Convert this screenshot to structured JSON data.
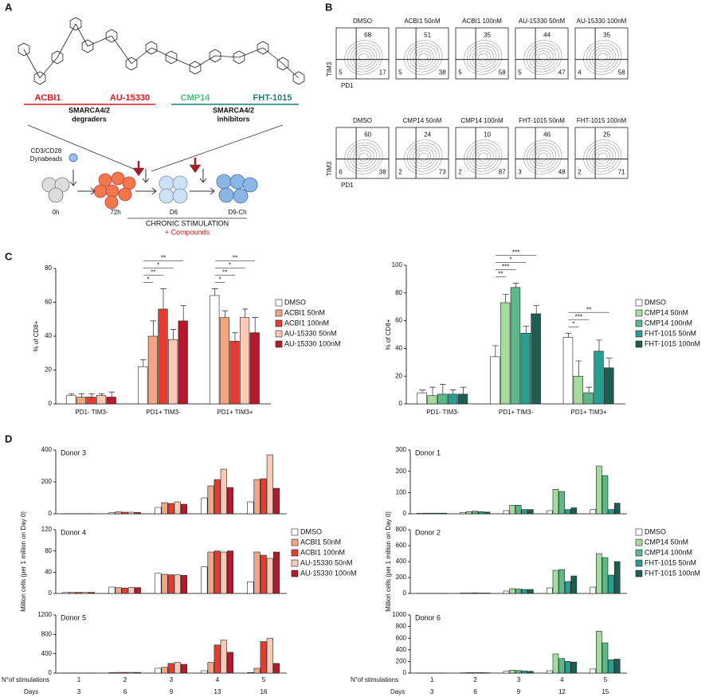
{
  "panel_labels": [
    "A",
    "B",
    "C",
    "D"
  ],
  "panel_a": {
    "compounds": [
      {
        "name": "ACBI1",
        "color": "#d7191c"
      },
      {
        "name": "AU-15330",
        "color": "#d7191c"
      },
      {
        "name": "CMP14",
        "color": "#4cbf7f"
      },
      {
        "name": "FHT-1015",
        "color": "#1b7f73"
      }
    ],
    "groups": [
      [
        "SMARCA4/2",
        "degraders"
      ],
      [
        "SMARCA4/2",
        "inhibitors"
      ]
    ],
    "stimulus": [
      "CD3/CD28",
      "Dynabeads"
    ],
    "timepoints": [
      "0h",
      "72h",
      "D6",
      "D9-Ch"
    ],
    "stimulation": "CHRONIC STIMULATION",
    "compounds_note": "+ Compounds"
  },
  "panel_b": {
    "x_label": "PD1",
    "y_label": "TIM3",
    "plots": [
      {
        "title": "DMSO",
        "quadrants": [
          68,
          5,
          17
        ]
      },
      {
        "title": "ACBI1 50nM",
        "quadrants": [
          51,
          5,
          38
        ]
      },
      {
        "title": "ACBI1 100nM",
        "quadrants": [
          35,
          5,
          58
        ]
      },
      {
        "title": "AU-15330 50nM",
        "quadrants": [
          44,
          5,
          47
        ]
      },
      {
        "title": "AU-15330 100nM",
        "quadrants": [
          35,
          4,
          58
        ]
      },
      {
        "title": "DMSO",
        "quadrants": [
          60,
          6,
          38
        ]
      },
      {
        "title": "CMP14 50nM",
        "quadrants": [
          24,
          2,
          73
        ]
      },
      {
        "title": "CMP14 100nM",
        "quadrants": [
          10,
          2,
          87
        ]
      },
      {
        "title": "FHT-1015 50nM",
        "quadrants": [
          46,
          3,
          48
        ]
      },
      {
        "title": "FHT-1015 100nM",
        "quadrants": [
          25,
          2,
          71
        ]
      }
    ]
  },
  "chart_data": [
    {
      "type": "bar",
      "ylabel": "% of CD8+",
      "categories": [
        "PD1- TIM3-",
        "PD1+ TIM3-",
        "PD1+ TIM3+"
      ],
      "ylim": [
        0,
        80
      ],
      "yticks": [
        0,
        20,
        40,
        60,
        80
      ],
      "series": [
        {
          "name": "DMSO",
          "color": "#ffffff",
          "values": [
            5,
            22,
            64
          ],
          "errors": [
            1,
            4,
            4
          ]
        },
        {
          "name": "ACBI1 50nM",
          "color": "#f4a582",
          "values": [
            4,
            40,
            51
          ],
          "errors": [
            2,
            9,
            4
          ]
        },
        {
          "name": "ACBI1 100nM",
          "color": "#e8392e",
          "values": [
            4,
            56,
            37
          ],
          "errors": [
            2,
            12,
            5
          ]
        },
        {
          "name": "AU-15330 50nM",
          "color": "#fbc9b4",
          "values": [
            5,
            38,
            51
          ],
          "errors": [
            1,
            6,
            5
          ]
        },
        {
          "name": "AU-15330 100nM",
          "color": "#b5192b",
          "values": [
            4,
            49,
            42
          ],
          "errors": [
            3,
            9,
            9
          ]
        }
      ],
      "significance": [
        [],
        [
          "*",
          "**",
          "*",
          "**"
        ],
        [
          "*",
          "**",
          "*",
          "**"
        ]
      ]
    },
    {
      "type": "bar",
      "ylabel": "% of CD8+",
      "categories": [
        "PD1- TIM3-",
        "PD1+ TIM3-",
        "PD1+ TIM3+"
      ],
      "ylim": [
        0,
        100
      ],
      "yticks": [
        0,
        20,
        40,
        60,
        80,
        100
      ],
      "series": [
        {
          "name": "DMSO",
          "color": "#ffffff",
          "values": [
            8,
            34,
            48
          ],
          "errors": [
            2,
            8,
            3
          ]
        },
        {
          "name": "CMP14 50nM",
          "color": "#a6dba0",
          "values": [
            6,
            73,
            20
          ],
          "errors": [
            6,
            6,
            11
          ]
        },
        {
          "name": "CMP14 100nM",
          "color": "#5ab889",
          "values": [
            7,
            84,
            8
          ],
          "errors": [
            7,
            3,
            4
          ]
        },
        {
          "name": "FHT-1015 50nM",
          "color": "#2a9d8f",
          "values": [
            7,
            51,
            38
          ],
          "errors": [
            3,
            5,
            8
          ]
        },
        {
          "name": "FHT-1015 100nM",
          "color": "#1d5e52",
          "values": [
            7,
            65,
            26
          ],
          "errors": [
            5,
            6,
            7
          ]
        }
      ],
      "significance": [
        [],
        [
          "**",
          "***",
          "*",
          "***"
        ],
        [
          "*",
          "***",
          "**"
        ]
      ]
    },
    {
      "type": "bar",
      "title": "Donor 3",
      "ylim": [
        0,
        400
      ],
      "yticks": [
        0,
        200,
        400
      ],
      "series": [
        {
          "color": "#ffffff",
          "values": [
            1,
            8,
            40,
            100,
            75
          ]
        },
        {
          "color": "#f4a582",
          "values": [
            1,
            12,
            70,
            175,
            215
          ]
        },
        {
          "color": "#e8392e",
          "values": [
            1,
            10,
            65,
            215,
            220
          ]
        },
        {
          "color": "#fbc9b4",
          "values": [
            1,
            10,
            75,
            280,
            370
          ]
        },
        {
          "color": "#b5192b",
          "values": [
            1,
            8,
            60,
            165,
            160
          ]
        }
      ]
    },
    {
      "type": "bar",
      "title": "Donor 4",
      "ylabel": "Million cells (per 1 million on Day 0)",
      "ylim": [
        0,
        120
      ],
      "yticks": [
        0,
        40,
        80,
        120
      ],
      "series": [
        {
          "name": "DMSO",
          "color": "#ffffff",
          "values": [
            2,
            12,
            38,
            50,
            22
          ]
        },
        {
          "name": "ACBI1 50nM",
          "color": "#f4a582",
          "values": [
            2,
            11,
            36,
            78,
            78
          ]
        },
        {
          "name": "ACBI1 100nM",
          "color": "#e8392e",
          "values": [
            2,
            10,
            35,
            80,
            72
          ]
        },
        {
          "name": "AU-15330 50nM",
          "color": "#fbc9b4",
          "values": [
            2,
            11,
            35,
            78,
            66
          ]
        },
        {
          "name": "AU-15330 100nM",
          "color": "#b5192b",
          "values": [
            2,
            11,
            34,
            80,
            78
          ]
        }
      ]
    },
    {
      "type": "bar",
      "title": "Donor 5",
      "ylim": [
        0,
        1200
      ],
      "yticks": [
        0,
        400,
        800,
        1200
      ],
      "categories": [
        "1",
        "2",
        "3",
        "4",
        "5"
      ],
      "days": [
        3,
        6,
        9,
        13,
        16
      ],
      "xlabels": [
        "N°of stimulations",
        "Days"
      ],
      "series": [
        {
          "color": "#ffffff",
          "values": [
            2,
            10,
            100,
            50,
            10
          ]
        },
        {
          "color": "#f4a582",
          "values": [
            2,
            15,
            120,
            220,
            100
          ]
        },
        {
          "color": "#e8392e",
          "values": [
            2,
            15,
            200,
            580,
            650
          ]
        },
        {
          "color": "#fbc9b4",
          "values": [
            2,
            15,
            220,
            680,
            720
          ]
        },
        {
          "color": "#b5192b",
          "values": [
            2,
            15,
            180,
            430,
            200
          ]
        }
      ]
    },
    {
      "type": "bar",
      "title": "Donor 1",
      "ylim": [
        0,
        300
      ],
      "yticks": [
        0,
        100,
        200,
        300
      ],
      "series": [
        {
          "color": "#ffffff",
          "values": [
            2,
            6,
            15,
            15,
            20
          ]
        },
        {
          "color": "#a6dba0",
          "values": [
            3,
            10,
            40,
            115,
            225
          ]
        },
        {
          "color": "#5ab889",
          "values": [
            3,
            12,
            40,
            105,
            180
          ]
        },
        {
          "color": "#2a9d8f",
          "values": [
            3,
            10,
            20,
            20,
            20
          ]
        },
        {
          "color": "#1d5e52",
          "values": [
            3,
            8,
            20,
            28,
            50
          ]
        }
      ]
    },
    {
      "type": "bar",
      "title": "Donor 2",
      "ylabel": "Million cells (per 1 million on Day 0)",
      "ylim": [
        0,
        800
      ],
      "yticks": [
        0,
        200,
        400,
        600,
        800
      ],
      "series": [
        {
          "name": "DMSO",
          "color": "#ffffff",
          "values": [
            2,
            5,
            30,
            70,
            80
          ]
        },
        {
          "name": "CMP14 50nM",
          "color": "#a6dba0",
          "values": [
            2,
            5,
            60,
            290,
            500
          ]
        },
        {
          "name": "CMP14 100nM",
          "color": "#5ab889",
          "values": [
            2,
            8,
            55,
            300,
            450
          ]
        },
        {
          "name": "FHT-1015 50nM",
          "color": "#2a9d8f",
          "values": [
            2,
            5,
            50,
            150,
            230
          ]
        },
        {
          "name": "FHT-1015 100nM",
          "color": "#1d5e52",
          "values": [
            2,
            5,
            50,
            220,
            400
          ]
        }
      ]
    },
    {
      "type": "bar",
      "title": "Donor 6",
      "ylim": [
        0,
        1000
      ],
      "yticks": [
        0,
        200,
        400,
        600,
        800,
        1000
      ],
      "categories": [
        "1",
        "2",
        "3",
        "4",
        "5"
      ],
      "days": [
        3,
        6,
        9,
        12,
        15
      ],
      "xlabels": [
        "N°of stimulations",
        "Days"
      ],
      "series": [
        {
          "color": "#ffffff",
          "values": [
            2,
            5,
            30,
            40,
            70
          ]
        },
        {
          "color": "#a6dba0",
          "values": [
            2,
            8,
            50,
            330,
            720
          ]
        },
        {
          "color": "#5ab889",
          "values": [
            2,
            8,
            45,
            250,
            520
          ]
        },
        {
          "color": "#2a9d8f",
          "values": [
            2,
            8,
            35,
            200,
            230
          ]
        },
        {
          "color": "#1d5e52",
          "values": [
            2,
            6,
            30,
            190,
            240
          ]
        }
      ]
    }
  ]
}
